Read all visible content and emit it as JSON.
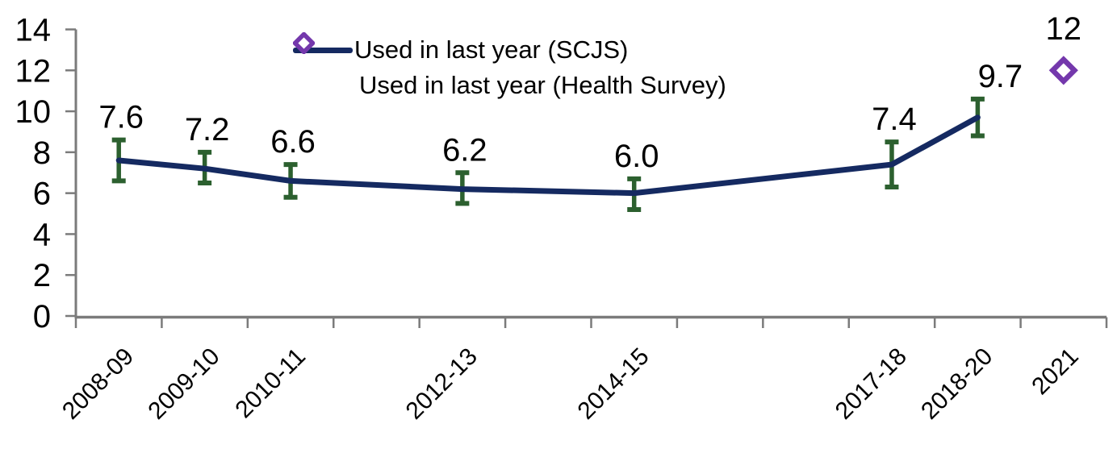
{
  "chart_data": {
    "type": "line",
    "title": "",
    "background": "#ffffff",
    "text_color": "#000000",
    "axis_color": "#7b7b7b",
    "legend_position": "top-center",
    "y_axis": {
      "min": 0,
      "max": 14,
      "tick_step": 2,
      "tick_labels": [
        "0",
        "2",
        "4",
        "6",
        "8",
        "10",
        "12",
        "14"
      ]
    },
    "x_axis": {
      "slot_count": 12,
      "labels": [
        {
          "index": 0,
          "label": "2008-09"
        },
        {
          "index": 1,
          "label": "2009-10"
        },
        {
          "index": 2,
          "label": "2010-11"
        },
        {
          "index": 4,
          "label": "2012-13"
        },
        {
          "index": 6,
          "label": "2014-15"
        },
        {
          "index": 9,
          "label": "2017-18"
        },
        {
          "index": 10,
          "label": "2018-20"
        },
        {
          "index": 11,
          "label": "2021"
        }
      ]
    },
    "series": [
      {
        "name": "Used in last year (SCJS)",
        "type": "line-with-error-bars",
        "color": "#152a61",
        "error_bar_color": "#2c602f",
        "points": [
          {
            "category": "2008-09",
            "slot": 0,
            "value": 7.6,
            "label": "7.6",
            "ci_low": 6.6,
            "ci_high": 8.6
          },
          {
            "category": "2009-10",
            "slot": 1,
            "value": 7.2,
            "label": "7.2",
            "ci_low": 6.5,
            "ci_high": 8.0
          },
          {
            "category": "2010-11",
            "slot": 2,
            "value": 6.6,
            "label": "6.6",
            "ci_low": 5.8,
            "ci_high": 7.4
          },
          {
            "category": "2012-13",
            "slot": 4,
            "value": 6.2,
            "label": "6.2",
            "ci_low": 5.5,
            "ci_high": 7.0
          },
          {
            "category": "2014-15",
            "slot": 6,
            "value": 6.0,
            "label": "6.0",
            "ci_low": 5.2,
            "ci_high": 6.7
          },
          {
            "category": "2017-18",
            "slot": 9,
            "value": 7.4,
            "label": "7.4",
            "ci_low": 6.3,
            "ci_high": 8.5
          },
          {
            "category": "2018-20",
            "slot": 10,
            "value": 9.7,
            "label": "9.7",
            "ci_low": 8.8,
            "ci_high": 10.6
          }
        ]
      },
      {
        "name": "Used in last year (Health Survey)",
        "type": "scatter-diamond",
        "color": "#7438ac",
        "points": [
          {
            "category": "2021",
            "slot": 11,
            "value": 12,
            "label": "12"
          }
        ]
      }
    ]
  }
}
